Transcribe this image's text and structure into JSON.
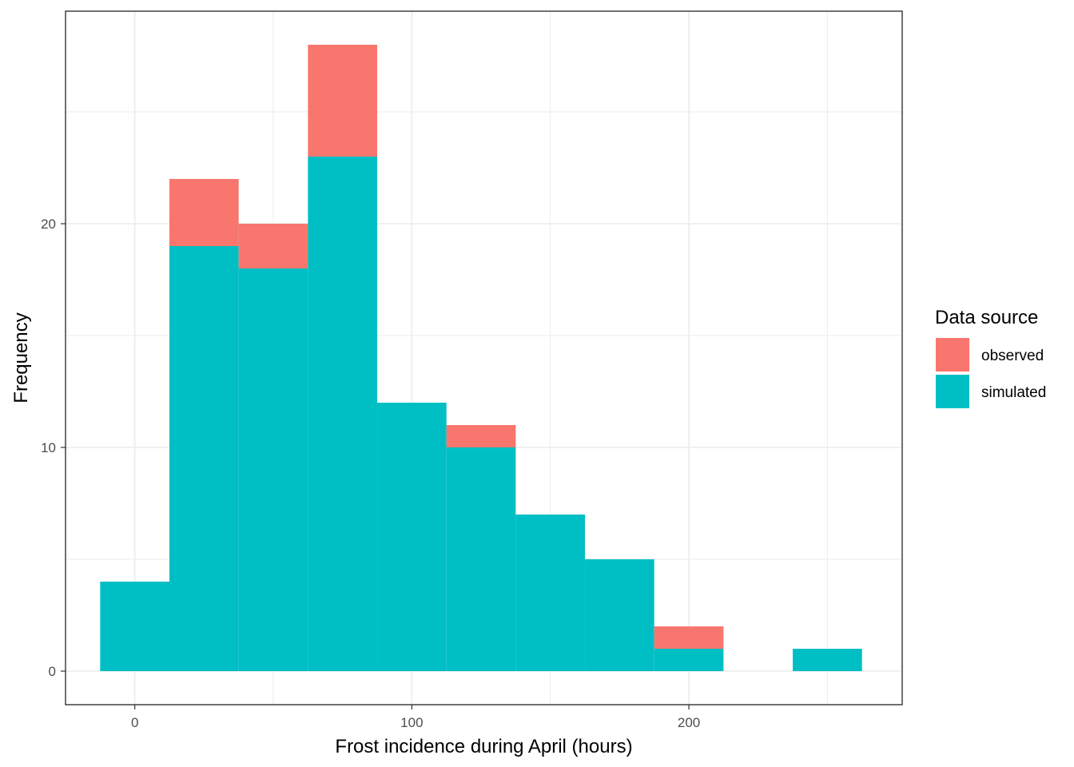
{
  "chart_data": {
    "type": "bar",
    "subtype": "stacked-histogram",
    "title": "",
    "xlabel": "Frost incidence during April (hours)",
    "ylabel": "Frequency",
    "xlim": [
      -25,
      277
    ],
    "ylim": [
      -1.5,
      29.5
    ],
    "x_ticks": [
      0,
      100,
      200
    ],
    "y_ticks": [
      0,
      10,
      20
    ],
    "x_minor_ticks": [
      50,
      150,
      250
    ],
    "y_minor_ticks": [
      5,
      15,
      25
    ],
    "grid": true,
    "bin_width": 25,
    "bins": [
      [
        -12.5,
        12.5
      ],
      [
        12.5,
        37.5
      ],
      [
        37.5,
        62.5
      ],
      [
        62.5,
        87.5
      ],
      [
        87.5,
        112.5
      ],
      [
        112.5,
        137.5
      ],
      [
        137.5,
        162.5
      ],
      [
        162.5,
        187.5
      ],
      [
        187.5,
        212.5
      ],
      [
        212.5,
        237.5
      ],
      [
        237.5,
        262.5
      ]
    ],
    "series": [
      {
        "name": "simulated",
        "color": "#00BFC4",
        "values": [
          4,
          19,
          18,
          23,
          12,
          10,
          7,
          5,
          1,
          0,
          1
        ]
      },
      {
        "name": "observed",
        "color": "#F8766D",
        "values": [
          0,
          3,
          2,
          5,
          0,
          1,
          0,
          0,
          1,
          0,
          0
        ]
      }
    ],
    "legend": {
      "title": "Data source",
      "position": "right",
      "entries": [
        {
          "label": "observed",
          "color": "#F8766D"
        },
        {
          "label": "simulated",
          "color": "#00BFC4"
        }
      ]
    }
  }
}
